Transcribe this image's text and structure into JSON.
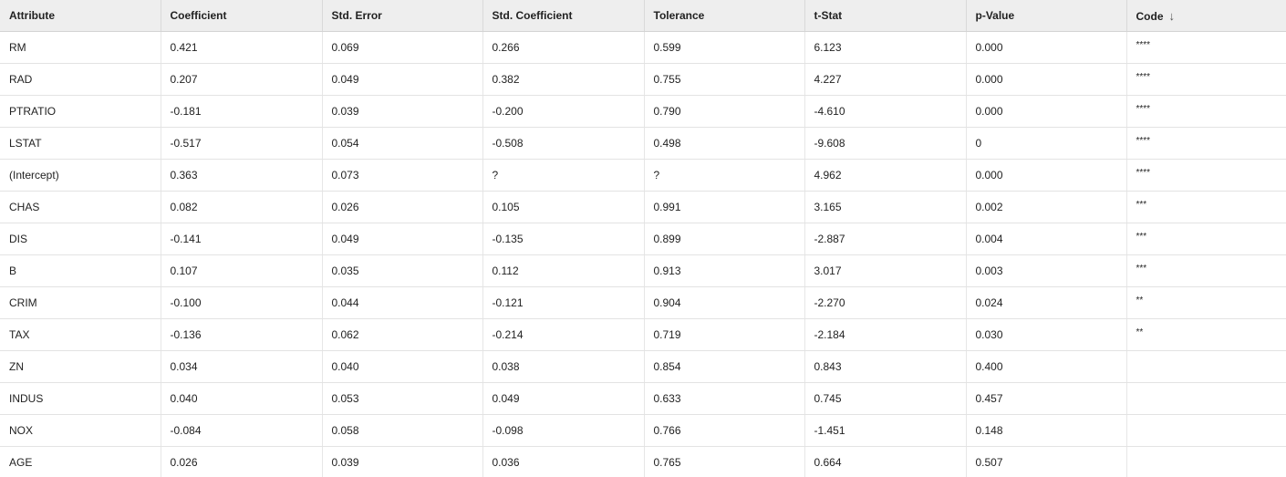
{
  "table": {
    "headers": [
      "Attribute",
      "Coefficient",
      "Std. Error",
      "Std. Coefficient",
      "Tolerance",
      "t-Stat",
      "p-Value",
      "Code"
    ],
    "sort": {
      "column": "Code",
      "direction": "descending",
      "icon": "arrow-down-icon",
      "glyph": "↓"
    },
    "rows": [
      [
        "RM",
        "0.421",
        "0.069",
        "0.266",
        "0.599",
        "6.123",
        "0.000",
        "****"
      ],
      [
        "RAD",
        "0.207",
        "0.049",
        "0.382",
        "0.755",
        "4.227",
        "0.000",
        "****"
      ],
      [
        "PTRATIO",
        "-0.181",
        "0.039",
        "-0.200",
        "0.790",
        "-4.610",
        "0.000",
        "****"
      ],
      [
        "LSTAT",
        "-0.517",
        "0.054",
        "-0.508",
        "0.498",
        "-9.608",
        "0",
        "****"
      ],
      [
        "(Intercept)",
        "0.363",
        "0.073",
        "?",
        "?",
        "4.962",
        "0.000",
        "****"
      ],
      [
        "CHAS",
        "0.082",
        "0.026",
        "0.105",
        "0.991",
        "3.165",
        "0.002",
        "***"
      ],
      [
        "DIS",
        "-0.141",
        "0.049",
        "-0.135",
        "0.899",
        "-2.887",
        "0.004",
        "***"
      ],
      [
        "B",
        "0.107",
        "0.035",
        "0.112",
        "0.913",
        "3.017",
        "0.003",
        "***"
      ],
      [
        "CRIM",
        "-0.100",
        "0.044",
        "-0.121",
        "0.904",
        "-2.270",
        "0.024",
        "**"
      ],
      [
        "TAX",
        "-0.136",
        "0.062",
        "-0.214",
        "0.719",
        "-2.184",
        "0.030",
        "**"
      ],
      [
        "ZN",
        "0.034",
        "0.040",
        "0.038",
        "0.854",
        "0.843",
        "0.400",
        ""
      ],
      [
        "INDUS",
        "0.040",
        "0.053",
        "0.049",
        "0.633",
        "0.745",
        "0.457",
        ""
      ],
      [
        "NOX",
        "-0.084",
        "0.058",
        "-0.098",
        "0.766",
        "-1.451",
        "0.148",
        ""
      ],
      [
        "AGE",
        "0.026",
        "0.039",
        "0.036",
        "0.765",
        "0.664",
        "0.507",
        ""
      ]
    ]
  },
  "colors": {
    "header_background": "#eeeeee",
    "row_background": "#ffffff",
    "border": "#e3e3e3",
    "text": "#222222"
  }
}
